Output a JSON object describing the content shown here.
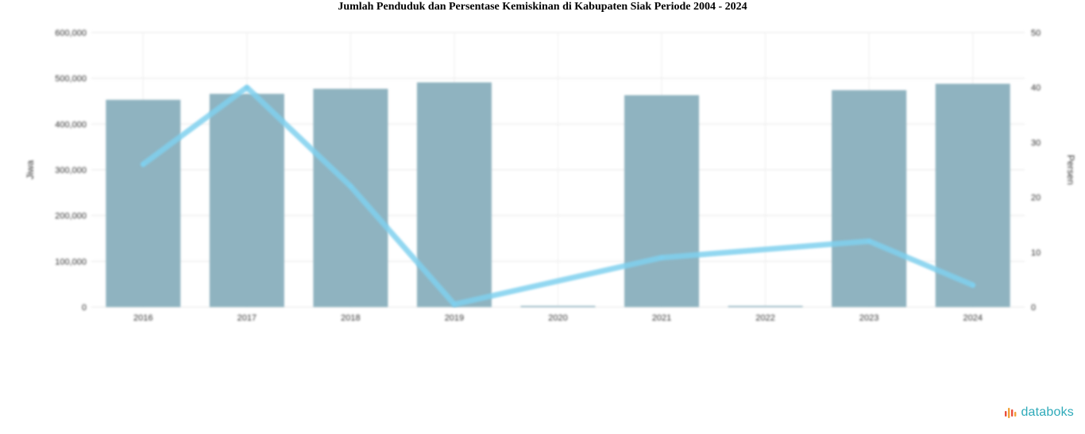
{
  "chart_data": {
    "type": "bar",
    "title": "Jumlah Penduduk dan Persentase Kemiskinan di Kabupaten Siak Periode 2004 - 2024",
    "categories": [
      "2016",
      "2017",
      "2018",
      "2019",
      "2020",
      "2021",
      "2022",
      "2023",
      "2024"
    ],
    "series": [
      {
        "name": "",
        "type": "bar",
        "axis": "left",
        "values": [
          453000,
          466000,
          477000,
          491000,
          2500,
          463000,
          2500,
          474000,
          488000
        ]
      },
      {
        "name": "",
        "type": "line",
        "axis": "right",
        "values": [
          26,
          40,
          22,
          0.5,
          null,
          9,
          null,
          12,
          4
        ]
      }
    ],
    "ylabel": "Jiwa",
    "y2label": "Persen",
    "ylim": [
      0,
      600000
    ],
    "y2lim": [
      0,
      50
    ],
    "yticks": [
      "0",
      "100,000",
      "200,000",
      "300,000",
      "400,000",
      "500,000",
      "600,000"
    ],
    "y2ticks": [
      "0",
      "10",
      "20",
      "30",
      "40",
      "50"
    ],
    "grid": true,
    "colors": {
      "bar": "#8fb3c0",
      "line": "#7fd0ef"
    }
  },
  "brand": {
    "logo_text": "databoks",
    "colors": [
      "#e94e3c",
      "#f3a33a",
      "#2eaab9"
    ]
  }
}
